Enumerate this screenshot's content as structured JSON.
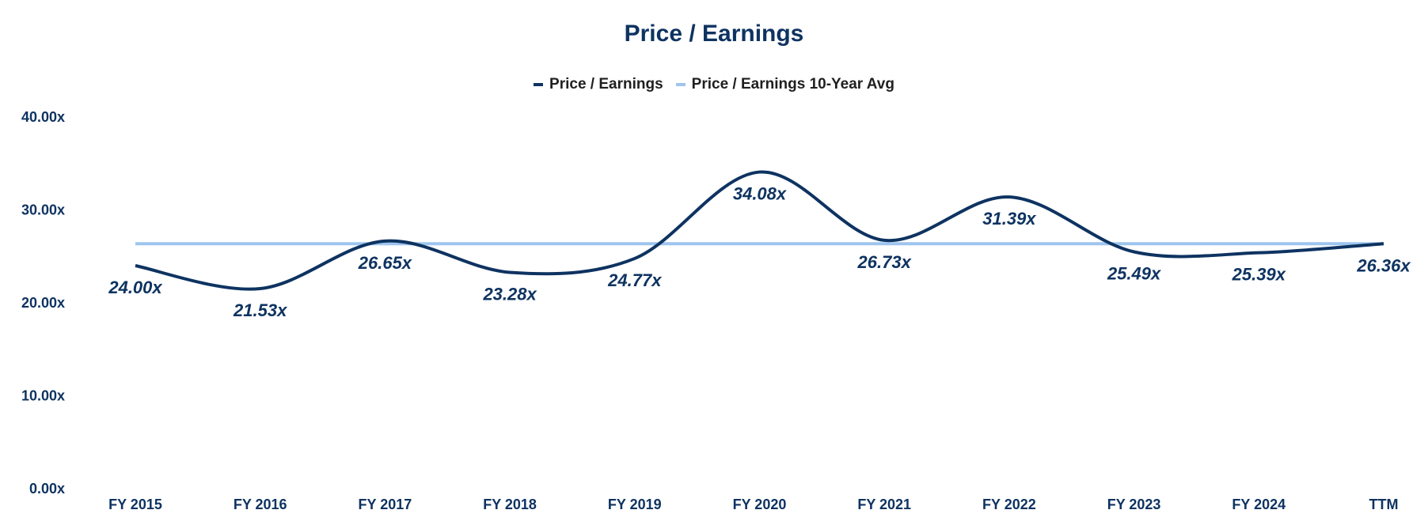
{
  "chart_data": {
    "type": "line",
    "title": "Price / Earnings",
    "categories": [
      "FY 2015",
      "FY 2016",
      "FY 2017",
      "FY 2018",
      "FY 2019",
      "FY 2020",
      "FY 2021",
      "FY 2022",
      "FY 2023",
      "FY 2024",
      "TTM"
    ],
    "series": [
      {
        "name": "Price / Earnings",
        "color": "#0e3361",
        "values": [
          24.0,
          21.53,
          26.65,
          23.28,
          24.77,
          34.08,
          26.73,
          31.39,
          25.49,
          25.39,
          26.36
        ],
        "labels": [
          "24.00x",
          "21.53x",
          "26.65x",
          "23.28x",
          "24.77x",
          "34.08x",
          "26.73x",
          "31.39x",
          "25.49x",
          "25.39x",
          "26.36x"
        ]
      },
      {
        "name": "Price / Earnings 10-Year Avg",
        "color": "#9ec5ee",
        "values": [
          26.36,
          26.36,
          26.36,
          26.36,
          26.36,
          26.36,
          26.36,
          26.36,
          26.36,
          26.36,
          26.36
        ]
      }
    ],
    "ylim": [
      0,
      40
    ],
    "yticks": [
      0,
      10,
      20,
      30,
      40
    ],
    "ytick_labels": [
      "0.00x",
      "10.00x",
      "20.00x",
      "30.00x",
      "40.00x"
    ],
    "legend_position": "top-center",
    "grid": false
  }
}
